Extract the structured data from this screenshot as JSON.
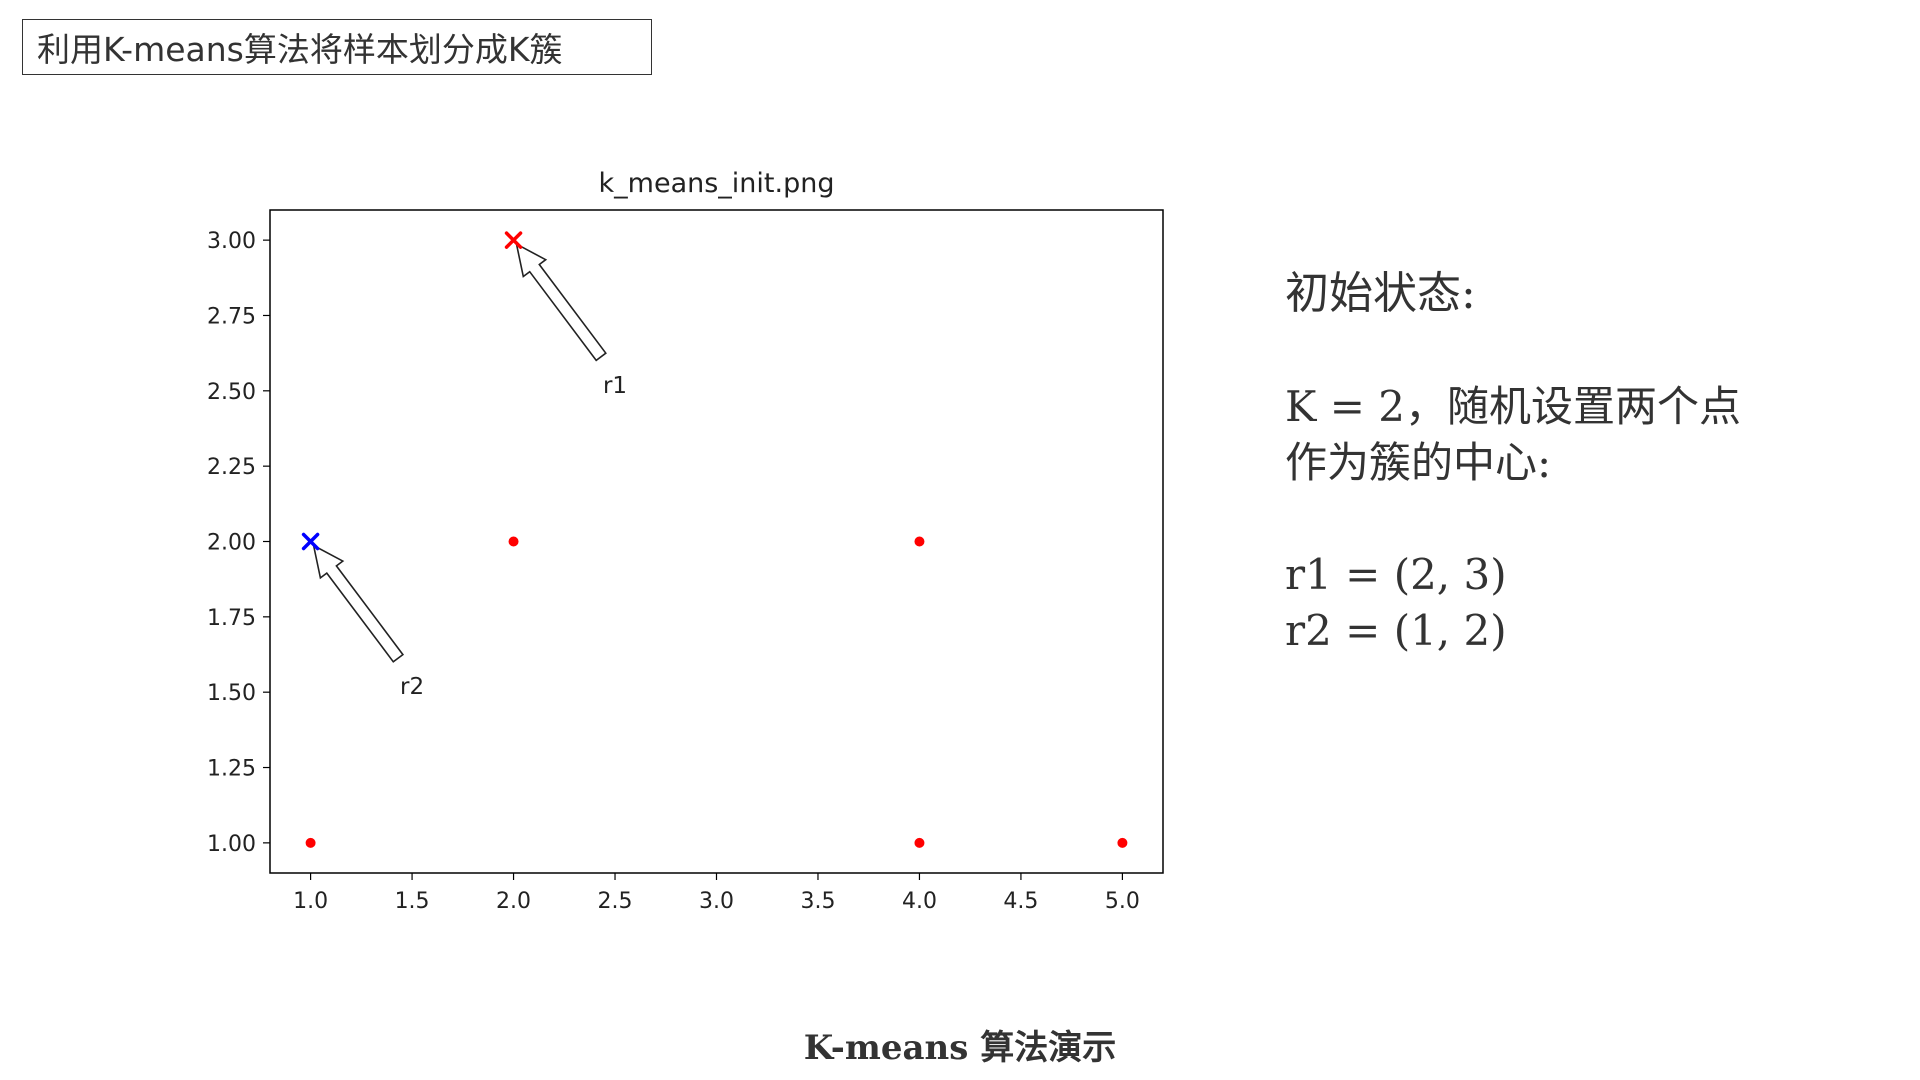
{
  "header": {
    "title": "利用K-means算法将样本划分成K簇"
  },
  "side_panel": {
    "heading": "初始状态:",
    "line1": "K = 2，随机设置两个点",
    "line2": "作为簇的中心:",
    "r1": "r1 = (2, 3)",
    "r2": "r2 = (1, 2)"
  },
  "caption": "K-means 算法演示",
  "chart_data": {
    "type": "scatter",
    "title": "k_means_init.png",
    "xlabel": "",
    "ylabel": "",
    "xlim": [
      0.8,
      5.2
    ],
    "ylim": [
      0.9,
      3.1
    ],
    "xticks": [
      "1.0",
      "1.5",
      "2.0",
      "2.5",
      "3.0",
      "3.5",
      "4.0",
      "4.5",
      "5.0"
    ],
    "yticks": [
      "1.00",
      "1.25",
      "1.50",
      "1.75",
      "2.00",
      "2.25",
      "2.50",
      "2.75",
      "3.00"
    ],
    "grid": false,
    "points": {
      "x": [
        1,
        2,
        4,
        4,
        5
      ],
      "y": [
        1,
        2,
        2,
        1,
        1
      ],
      "color": "#ff0000"
    },
    "centroids": [
      {
        "x": 2,
        "y": 3,
        "color": "#ff0000",
        "marker": "x"
      },
      {
        "x": 1,
        "y": 2,
        "color": "#0000ff",
        "marker": "x"
      }
    ],
    "annotations": [
      {
        "text": "r1",
        "x": 2,
        "y": 3,
        "text_x": 2.5,
        "text_y": 2.52
      },
      {
        "text": "r2",
        "x": 1,
        "y": 2,
        "text_x": 1.5,
        "text_y": 1.52
      }
    ]
  }
}
